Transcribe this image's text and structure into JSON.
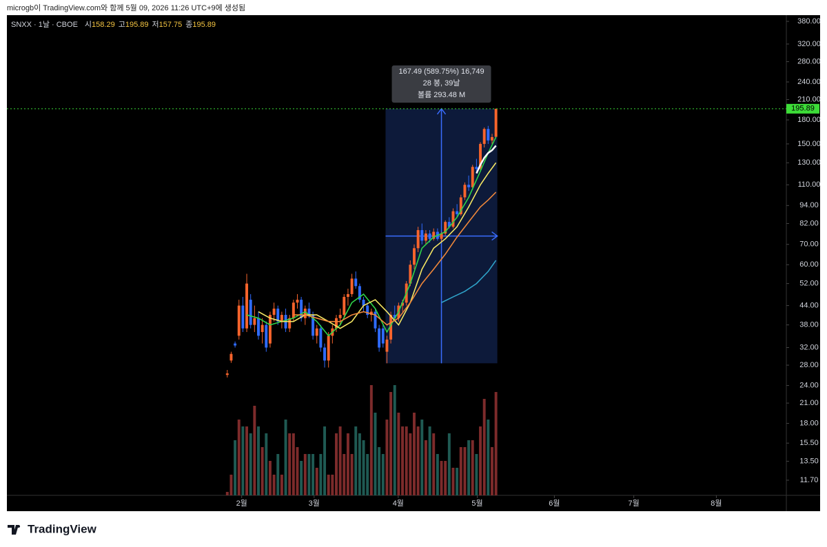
{
  "header": "microgb이 TradingView.com와 함께 5월 09, 2026 11:26 UTC+9에 생성됨",
  "logo": "TradingView",
  "chart_data": {
    "type": "candlestick",
    "symbol": "SNXX · 1날 · CBOE",
    "ohlc_labels": [
      "시",
      "고",
      "저",
      "종"
    ],
    "log_scale": true,
    "ylim": [
      10.43,
      398.4
    ],
    "yticks": [
      {
        "value": 380,
        "label": "380.00"
      },
      {
        "value": 320,
        "label": "320.00"
      },
      {
        "value": 280,
        "label": "280.00"
      },
      {
        "value": 240,
        "label": "240.00"
      },
      {
        "value": 210,
        "label": "210.00"
      },
      {
        "value": 180,
        "label": "180.00"
      },
      {
        "value": 150,
        "label": "150.00"
      },
      {
        "value": 130,
        "label": "130.00"
      },
      {
        "value": 110,
        "label": "110.00"
      },
      {
        "value": 94,
        "label": "94.00"
      },
      {
        "value": 82,
        "label": "82.00"
      },
      {
        "value": 70,
        "label": "70.00"
      },
      {
        "value": 60,
        "label": "60.00"
      },
      {
        "value": 52,
        "label": "52.00"
      },
      {
        "value": 44,
        "label": "44.00"
      },
      {
        "value": 38,
        "label": "38.00"
      },
      {
        "value": 32,
        "label": "32.00"
      },
      {
        "value": 28,
        "label": "28.00"
      },
      {
        "value": 24,
        "label": "24.00"
      },
      {
        "value": 21,
        "label": "21.00"
      },
      {
        "value": 18,
        "label": "18.00"
      },
      {
        "value": 15.5,
        "label": "15.50"
      },
      {
        "value": 13.5,
        "label": "13.50"
      },
      {
        "value": 11.7,
        "label": "11.70"
      }
    ],
    "xlim": [
      -56.6,
      143.4
    ],
    "xticks": [
      {
        "value": 3.7,
        "label": "2월"
      },
      {
        "value": 22.3,
        "label": "3월"
      },
      {
        "value": 43.9,
        "label": "4월"
      },
      {
        "value": 64.2,
        "label": "5월"
      },
      {
        "value": 84,
        "label": "6월"
      },
      {
        "value": 104.4,
        "label": "7월"
      },
      {
        "value": 125.6,
        "label": "8월"
      }
    ],
    "up_color": "#f7642c",
    "down_color": "#2f6bff",
    "volume_up_color": "#7d2b2b",
    "volume_down_color": "#1f5a53",
    "candles": [
      [
        26,
        27,
        25.5,
        26.3
      ],
      [
        29,
        31,
        28.5,
        30.5
      ],
      [
        33,
        33.5,
        32,
        32.5
      ],
      [
        35,
        46,
        34,
        44
      ],
      [
        44,
        47,
        36,
        37
      ],
      [
        37,
        56,
        36,
        52
      ],
      [
        46,
        48,
        37,
        38
      ],
      [
        38,
        44,
        36,
        40
      ],
      [
        40,
        42,
        34,
        35
      ],
      [
        36,
        40,
        33,
        38
      ],
      [
        38,
        39,
        31,
        32
      ],
      [
        33,
        42,
        32,
        41
      ],
      [
        41,
        45,
        39,
        43
      ],
      [
        43,
        44,
        38,
        39
      ],
      [
        39,
        42,
        37,
        41
      ],
      [
        41,
        43,
        36,
        37
      ],
      [
        37,
        41,
        36,
        40
      ],
      [
        40,
        46,
        39,
        45
      ],
      [
        45,
        48,
        43,
        46
      ],
      [
        46,
        47,
        39,
        40
      ],
      [
        40,
        44,
        38,
        43
      ],
      [
        43,
        45,
        40,
        41
      ],
      [
        41,
        42,
        34,
        35
      ],
      [
        35,
        38,
        33,
        37
      ],
      [
        37,
        38,
        31,
        32
      ],
      [
        32,
        33,
        27.5,
        29
      ],
      [
        29,
        36,
        27.5,
        35
      ],
      [
        35,
        38,
        33,
        37
      ],
      [
        37,
        41,
        36,
        40
      ],
      [
        40,
        43,
        38,
        41
      ],
      [
        41,
        48,
        40,
        47
      ],
      [
        47,
        50,
        44,
        48
      ],
      [
        48,
        56,
        47,
        54
      ],
      [
        54,
        57,
        50,
        51
      ],
      [
        51,
        52,
        45,
        46
      ],
      [
        46,
        47,
        42,
        44
      ],
      [
        44,
        45,
        40,
        41
      ],
      [
        41,
        43,
        39,
        42
      ],
      [
        42,
        43,
        36,
        37
      ],
      [
        37,
        38,
        31,
        32
      ],
      [
        37,
        38,
        32,
        33
      ],
      [
        31,
        35,
        28.4,
        34
      ],
      [
        34,
        42,
        33,
        41
      ],
      [
        41,
        44,
        39,
        40
      ],
      [
        40,
        45,
        39,
        44
      ],
      [
        44,
        46,
        42,
        45
      ],
      [
        45,
        53,
        44,
        52
      ],
      [
        52,
        62,
        51,
        60
      ],
      [
        60,
        70,
        58,
        68
      ],
      [
        68,
        80,
        66,
        78
      ],
      [
        78,
        82,
        70,
        72
      ],
      [
        72,
        78,
        70,
        76
      ],
      [
        76,
        78,
        71,
        73
      ],
      [
        73,
        79,
        72,
        77
      ],
      [
        77,
        79,
        72,
        73
      ],
      [
        73,
        77,
        71,
        76
      ],
      [
        76,
        84,
        75,
        83
      ],
      [
        83,
        86,
        79,
        80
      ],
      [
        80,
        92,
        79,
        90
      ],
      [
        90,
        95,
        86,
        88
      ],
      [
        88,
        102,
        87,
        100
      ],
      [
        100,
        112,
        98,
        110
      ],
      [
        110,
        118,
        105,
        108
      ],
      [
        108,
        128,
        106,
        126
      ],
      [
        126,
        134,
        121,
        124
      ],
      [
        124,
        152,
        122,
        150
      ],
      [
        150,
        170,
        146,
        168
      ],
      [
        168,
        172,
        150,
        154
      ],
      [
        154,
        162,
        150,
        158
      ],
      [
        158.29,
        195.89,
        157.75,
        195.89
      ]
    ],
    "vlim": [
      0,
      18
    ],
    "volumes": [
      0.5,
      3,
      8,
      11,
      10,
      10,
      9,
      13,
      10,
      7,
      9,
      5,
      3,
      6,
      3,
      11,
      9,
      9,
      7,
      5,
      6,
      6,
      6,
      4,
      6,
      10,
      3,
      3,
      9,
      10,
      6,
      9,
      6,
      10,
      9,
      8,
      6,
      16,
      12,
      7,
      6,
      11,
      15,
      16,
      12,
      10,
      10,
      9,
      12,
      10,
      11,
      8,
      10,
      9,
      6,
      5,
      5,
      9,
      4,
      4,
      7,
      7,
      8,
      8,
      6,
      10,
      14,
      11,
      7,
      15
    ],
    "indicators": [
      {
        "color": "#2fd54a",
        "x": [
          5,
          8,
          11,
          14,
          17,
          20,
          23,
          26,
          29,
          32,
          35,
          38,
          41,
          44,
          47,
          50,
          53,
          56,
          59,
          62,
          65,
          67,
          69
        ],
        "values": [
          41,
          40,
          38,
          39,
          40,
          42,
          39,
          35,
          38,
          45,
          48,
          43,
          36,
          42,
          52,
          68,
          74,
          77,
          86,
          100,
          122,
          140,
          158
        ]
      },
      {
        "color": "#f5e663",
        "x": [
          8,
          11,
          14,
          17,
          20,
          23,
          26,
          29,
          32,
          35,
          38,
          41,
          44,
          47,
          50,
          53,
          56,
          59,
          62,
          65,
          67,
          69
        ],
        "values": [
          42,
          40,
          39,
          39,
          41,
          41,
          39,
          37,
          39,
          44,
          46,
          42,
          38,
          45,
          58,
          68,
          73,
          80,
          93,
          110,
          120,
          130
        ]
      },
      {
        "color": "#f0883a",
        "x": [
          17,
          20,
          23,
          26,
          29,
          32,
          35,
          38,
          41,
          44,
          47,
          50,
          53,
          56,
          59,
          62,
          65,
          67,
          69
        ],
        "values": [
          41,
          41,
          40,
          39,
          39,
          41,
          42,
          41,
          38,
          40,
          45,
          52,
          58,
          65,
          74,
          83,
          93,
          98,
          104
        ]
      },
      {
        "color": "#ffffff",
        "x": [
          64,
          65,
          66,
          67,
          68,
          69
        ],
        "values": [
          120,
          128,
          135,
          140,
          143,
          148
        ]
      },
      {
        "color": "#2fa3c9",
        "x": [
          55,
          58,
          61,
          64,
          67,
          69
        ],
        "values": [
          45,
          47,
          49,
          52,
          57,
          62
        ]
      }
    ],
    "price_line_color": "#3ddc38",
    "measure": {
      "from": 41,
      "to": 69,
      "low": 28.4,
      "high": 195.89,
      "lines": [
        "167.49 (589.75%) 16,749",
        "28 봉, 39날",
        "볼륨 293.48 M"
      ]
    }
  }
}
